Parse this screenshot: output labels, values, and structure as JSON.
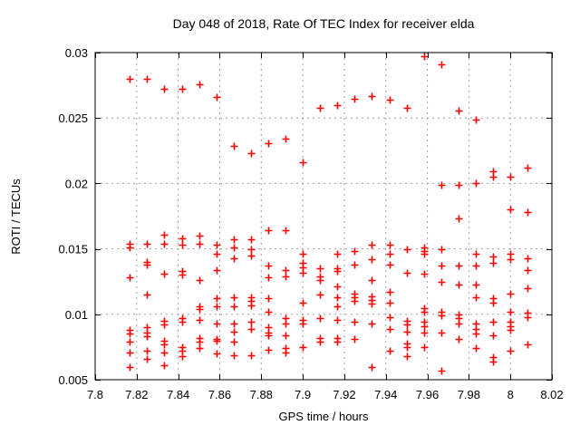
{
  "chart_data": {
    "type": "scatter",
    "title": "Day 048 of 2018, Rate Of TEC Index for receiver elda",
    "xlabel": "GPS time / hours",
    "ylabel": "ROTI / TECUs",
    "xlim": [
      7.8,
      8.02
    ],
    "ylim": [
      0.005,
      0.03
    ],
    "xticks": [
      7.8,
      7.82,
      7.84,
      7.86,
      7.88,
      7.9,
      7.92,
      7.94,
      7.96,
      7.98,
      8,
      8.02
    ],
    "xtick_labels": [
      "7.8",
      "7.82",
      "7.84",
      "7.86",
      "7.88",
      "7.9",
      "7.92",
      "7.94",
      "7.96",
      "7.98",
      "8",
      "8.02"
    ],
    "yticks": [
      0.005,
      0.01,
      0.015,
      0.02,
      0.025,
      0.03
    ],
    "ytick_labels": [
      "0.005",
      "0.01",
      "0.015",
      "0.02",
      "0.025",
      "0.03"
    ],
    "grid": true,
    "legend": false,
    "marker": "plus",
    "marker_color": "#ff0000",
    "grid_color": "#a0a0a0",
    "frame_color": "#000000",
    "background_color": "#ffffff",
    "points_by_epoch": [
      {
        "t": 7.8167,
        "values": [
          0.028,
          0.0154,
          0.0151,
          0.0128,
          0.0088,
          0.0085,
          0.0079,
          0.0071,
          0.006
        ]
      },
      {
        "t": 7.825,
        "values": [
          0.028,
          0.0154,
          0.014,
          0.0138,
          0.0115,
          0.009,
          0.0086,
          0.0083,
          0.0072,
          0.0066
        ]
      },
      {
        "t": 7.8333,
        "values": [
          0.0272,
          0.0161,
          0.0154,
          0.0131,
          0.0095,
          0.0092,
          0.008,
          0.0077,
          0.0071,
          0.0061
        ]
      },
      {
        "t": 7.8417,
        "values": [
          0.0272,
          0.0158,
          0.0153,
          0.0133,
          0.013,
          0.0097,
          0.0094,
          0.0075,
          0.0072,
          0.0068
        ]
      },
      {
        "t": 7.85,
        "values": [
          0.0276,
          0.016,
          0.0154,
          0.0126,
          0.0106,
          0.0104,
          0.0096,
          0.0082,
          0.0079,
          0.0074
        ]
      },
      {
        "t": 7.8583,
        "values": [
          0.0266,
          0.0153,
          0.0146,
          0.0134,
          0.0112,
          0.0106,
          0.0093,
          0.0081,
          0.008,
          0.007
        ]
      },
      {
        "t": 7.8667,
        "values": [
          0.0229,
          0.0157,
          0.0151,
          0.0143,
          0.0113,
          0.0106,
          0.0093,
          0.0087,
          0.0079,
          0.0069
        ]
      },
      {
        "t": 7.875,
        "values": [
          0.0223,
          0.0157,
          0.015,
          0.0145,
          0.0113,
          0.011,
          0.0107,
          0.0094,
          0.0089,
          0.0069
        ]
      },
      {
        "t": 7.8833,
        "values": [
          0.0231,
          0.0164,
          0.0137,
          0.0128,
          0.0112,
          0.0102,
          0.009,
          0.0086,
          0.0084,
          0.0073
        ]
      },
      {
        "t": 7.8917,
        "values": [
          0.0234,
          0.0164,
          0.0134,
          0.0129,
          0.0097,
          0.0093,
          0.0084,
          0.0074,
          0.0071
        ]
      },
      {
        "t": 7.9,
        "values": [
          0.0216,
          0.0146,
          0.0139,
          0.0136,
          0.0132,
          0.0109,
          0.0096,
          0.0093,
          0.0075
        ]
      },
      {
        "t": 7.9083,
        "values": [
          0.0258,
          0.0135,
          0.0129,
          0.0126,
          0.0115,
          0.0097,
          0.0082,
          0.0079
        ]
      },
      {
        "t": 7.9167,
        "values": [
          0.026,
          0.0146,
          0.0135,
          0.0133,
          0.0121,
          0.0113,
          0.0106,
          0.0096,
          0.0082,
          0.0079
        ]
      },
      {
        "t": 7.925,
        "values": [
          0.0265,
          0.0148,
          0.0138,
          0.0116,
          0.0113,
          0.011,
          0.0094,
          0.0081
        ]
      },
      {
        "t": 7.9333,
        "values": [
          0.0267,
          0.0153,
          0.0142,
          0.0126,
          0.0114,
          0.0111,
          0.0108,
          0.0093,
          0.006
        ]
      },
      {
        "t": 7.9417,
        "values": [
          0.0264,
          0.0153,
          0.0146,
          0.0138,
          0.0117,
          0.0109,
          0.0098,
          0.0089,
          0.0072
        ]
      },
      {
        "t": 7.95,
        "values": [
          0.0258,
          0.015,
          0.0132,
          0.0095,
          0.0092,
          0.0087,
          0.0078,
          0.0075,
          0.0068
        ]
      },
      {
        "t": 7.9583,
        "values": [
          0.0297,
          0.0151,
          0.0148,
          0.0146,
          0.0131,
          0.0105,
          0.0102,
          0.0094,
          0.0091,
          0.0086,
          0.0075
        ]
      },
      {
        "t": 7.9667,
        "values": [
          0.0291,
          0.0199,
          0.015,
          0.0137,
          0.0125,
          0.0102,
          0.0099,
          0.0086,
          0.0057
        ]
      },
      {
        "t": 7.975,
        "values": [
          0.0256,
          0.0199,
          0.0173,
          0.0137,
          0.0123,
          0.01,
          0.0097,
          0.0093,
          0.0081
        ]
      },
      {
        "t": 7.9833,
        "values": [
          0.0249,
          0.02,
          0.0146,
          0.0137,
          0.0123,
          0.0113,
          0.0093,
          0.0089,
          0.0085,
          0.0074
        ]
      },
      {
        "t": 7.9917,
        "values": [
          0.0209,
          0.0205,
          0.0144,
          0.0139,
          0.0112,
          0.0109,
          0.0094,
          0.0084,
          0.0067,
          0.0064
        ]
      },
      {
        "t": 8.0,
        "values": [
          0.0205,
          0.018,
          0.0146,
          0.0142,
          0.0116,
          0.0102,
          0.0094,
          0.0091,
          0.0088,
          0.0072
        ]
      },
      {
        "t": 8.0083,
        "values": [
          0.0212,
          0.0178,
          0.0143,
          0.0134,
          0.012,
          0.0101,
          0.0098,
          0.0077
        ]
      }
    ]
  }
}
